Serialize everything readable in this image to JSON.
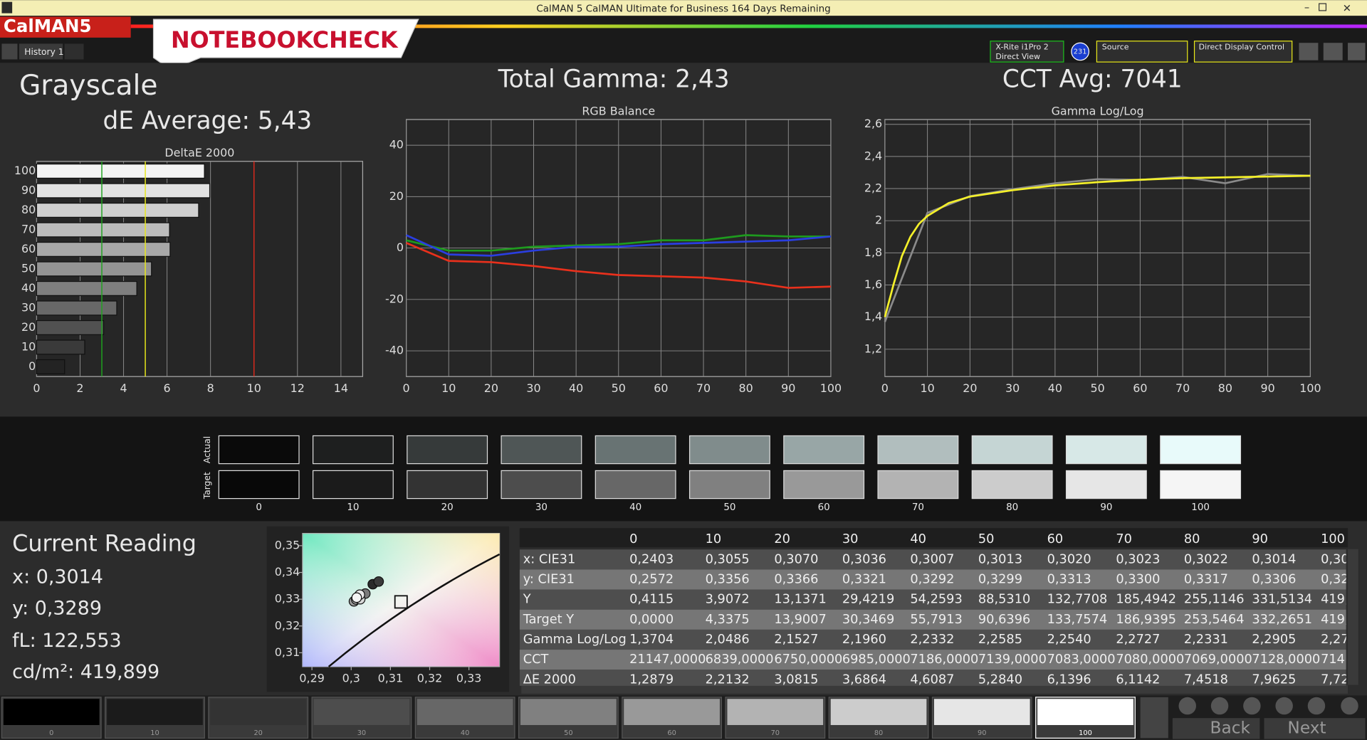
{
  "window": {
    "title": "CalMAN 5 CalMAN Ultimate for Business 164 Days Remaining",
    "app_logo": "CalMAN5",
    "tab": "History 1",
    "watermark": "NOTEBOOKCHECK",
    "meter_line1": "X-Rite i1Pro 2",
    "meter_line2": "Direct View",
    "badge": "231",
    "source": "Source",
    "display": "Direct Display Control"
  },
  "header": {
    "section": "Grayscale",
    "de_average": "dE Average: 5,43",
    "total_gamma": "Total Gamma: 2,43",
    "cct_avg": "CCT Avg: 7041"
  },
  "chart_data": [
    {
      "type": "hbar",
      "title": "DeltaE 2000",
      "categories": [
        100,
        90,
        80,
        70,
        60,
        50,
        40,
        30,
        20,
        10,
        0
      ],
      "values": [
        7.72,
        7.9625,
        7.4518,
        6.1142,
        6.1396,
        5.284,
        4.6087,
        3.6864,
        3.0815,
        2.2132,
        1.2879
      ],
      "colors": [
        "#f4f4f4",
        "#e2e2e2",
        "#cfcfcf",
        "#bcbcbc",
        "#a8a8a8",
        "#949494",
        "#7f7f7f",
        "#686868",
        "#515151",
        "#3a3a3a",
        "#232323"
      ],
      "xlim": [
        0,
        15
      ],
      "xticks": [
        0,
        2,
        4,
        6,
        8,
        10,
        12,
        14
      ],
      "grid": true,
      "reference_lines": [
        {
          "value": 3,
          "color": "#1fa31f"
        },
        {
          "value": 5,
          "color": "#e8e81a"
        },
        {
          "value": 10,
          "color": "#d8281c"
        }
      ]
    },
    {
      "type": "line",
      "title": "RGB Balance",
      "x": [
        0,
        10,
        20,
        30,
        40,
        50,
        60,
        70,
        80,
        90,
        100
      ],
      "series": [
        {
          "color": "#e8301c",
          "values": [
            2,
            -5,
            -5.5,
            -7,
            -9,
            -10.5,
            -11,
            -11.5,
            -13,
            -15.5,
            -15
          ]
        },
        {
          "color": "#1e9a1e",
          "values": [
            3,
            -1,
            -1,
            0.5,
            1,
            1.5,
            3,
            3,
            5,
            4.5,
            4.5
          ]
        },
        {
          "color": "#2a3ee0",
          "values": [
            5,
            -2.5,
            -3,
            -1,
            0.5,
            0.5,
            1.5,
            2,
            2.5,
            3,
            4.5
          ]
        }
      ],
      "xlim": [
        0,
        100
      ],
      "xticks": [
        0,
        10,
        20,
        30,
        40,
        50,
        60,
        70,
        80,
        90,
        100
      ],
      "ylim": [
        -50,
        50
      ],
      "yticks": [
        -40,
        -20,
        0,
        20,
        40
      ],
      "grid": true
    },
    {
      "type": "line",
      "title": "Gamma Log/Log",
      "series": [
        {
          "color": "#8a8a8a",
          "x": [
            0,
            10,
            20,
            30,
            40,
            50,
            60,
            70,
            80,
            90,
            100
          ],
          "values": [
            1.3704,
            2.0486,
            2.1527,
            2.196,
            2.2332,
            2.2585,
            2.254,
            2.2727,
            2.2331,
            2.2905,
            2.28
          ]
        },
        {
          "color": "#f4f02a",
          "x": [
            0,
            2,
            4,
            6,
            8,
            10,
            15,
            20,
            30,
            40,
            50,
            60,
            70,
            80,
            90,
            100
          ],
          "values": [
            1.4,
            1.6,
            1.78,
            1.9,
            1.98,
            2.03,
            2.11,
            2.15,
            2.19,
            2.22,
            2.24,
            2.255,
            2.265,
            2.27,
            2.275,
            2.28
          ]
        }
      ],
      "xlim": [
        0,
        100
      ],
      "xticks": [
        0,
        10,
        20,
        30,
        40,
        50,
        60,
        70,
        80,
        90,
        100
      ],
      "ylim": [
        1.03,
        2.63
      ],
      "yticks": [
        {
          "value": 1.2,
          "label": "1,2"
        },
        {
          "value": 1.4,
          "label": "1,4"
        },
        {
          "value": 1.6,
          "label": "1,6"
        },
        {
          "value": 1.8,
          "label": "1,8"
        },
        2,
        {
          "value": 2.2,
          "label": "2,2"
        },
        {
          "value": 2.4,
          "label": "2,4"
        },
        {
          "value": 2.6,
          "label": "2,6"
        }
      ],
      "grid": true
    },
    {
      "type": "scatter",
      "x": [
        0.3055,
        0.307,
        0.3036,
        0.3007,
        0.3013,
        0.302,
        0.3023,
        0.3022,
        0.3014
      ],
      "values": [
        0.3356,
        0.3366,
        0.3321,
        0.3292,
        0.3299,
        0.3313,
        0.33,
        0.3317,
        0.3306
      ],
      "colors": [
        "#2a2a2a",
        "#3a3a3a",
        "#7a7a7a",
        "#9a9a9a",
        "#b0b0b0",
        "#c8c8c8",
        "#d8d8d8",
        "#e8e8e8",
        "#f4f4f4"
      ],
      "target": {
        "x": 0.3127,
        "y": 0.329
      },
      "xlim": [
        0.2876,
        0.3378
      ],
      "xticks": [
        {
          "value": 0.29,
          "label": "0,29"
        },
        {
          "value": 0.3,
          "label": "0,3"
        },
        {
          "value": 0.31,
          "label": "0,31"
        },
        {
          "value": 0.32,
          "label": "0,32"
        },
        {
          "value": 0.33,
          "label": "0,33"
        }
      ],
      "ylim": [
        0.3048,
        0.3546
      ],
      "yticks": [
        {
          "value": 0.31,
          "label": "0,31"
        },
        {
          "value": 0.32,
          "label": "0,32"
        },
        {
          "value": 0.33,
          "label": "0,33"
        },
        {
          "value": 0.34,
          "label": "0,34"
        },
        {
          "value": 0.35,
          "label": "0,35"
        }
      ],
      "grid": false
    }
  ],
  "swatches": {
    "actual_label": "Actual",
    "target_label": "Target",
    "labels": [
      0,
      10,
      20,
      30,
      40,
      50,
      60,
      70,
      80,
      90,
      100
    ],
    "actual": [
      "#0a0a0a",
      "#1e1f1f",
      "#363a3a",
      "#4f5656",
      "#687373",
      "#808c8c",
      "#98a6a6",
      "#b1bebe",
      "#c5d5d4",
      "#d7e8e7",
      "#e8fafa"
    ],
    "target": [
      "#080808",
      "#1b1b1b",
      "#333333",
      "#4d4d4d",
      "#676767",
      "#808080",
      "#999999",
      "#b3b3b3",
      "#cccccc",
      "#e6e6e6",
      "#f5f5f5"
    ]
  },
  "reading": {
    "title": "Current Reading",
    "x": "x: 0,3014",
    "y": "y: 0,3289",
    "fl": "fL: 122,553",
    "cdm2": "cd/m²: 419,899"
  },
  "table": {
    "header": [
      0,
      10,
      20,
      30,
      40,
      50,
      60,
      70,
      80,
      90,
      100
    ],
    "rows": [
      [
        "x: CIE31",
        "0,2403",
        "0,3055",
        "0,3070",
        "0,3036",
        "0,3007",
        "0,3013",
        "0,3020",
        "0,3023",
        "0,3022",
        "0,3014",
        "0,30"
      ],
      [
        "y: CIE31",
        "0,2572",
        "0,3356",
        "0,3366",
        "0,3321",
        "0,3292",
        "0,3299",
        "0,3313",
        "0,3300",
        "0,3317",
        "0,3306",
        "0,32"
      ],
      [
        "Y",
        "0,4115",
        "3,9072",
        "13,1371",
        "29,4219",
        "54,2593",
        "88,5310",
        "132,7708",
        "185,4942",
        "255,1146",
        "331,5134",
        "419,"
      ],
      [
        "Target Y",
        "0,0000",
        "4,3375",
        "13,9007",
        "30,3469",
        "55,7913",
        "90,6396",
        "133,7574",
        "186,9395",
        "253,5464",
        "332,2651",
        "419,"
      ],
      [
        "Gamma Log/Log",
        "1,3704",
        "2,0486",
        "2,1527",
        "2,1960",
        "2,2332",
        "2,2585",
        "2,2540",
        "2,2727",
        "2,2331",
        "2,2905",
        "2,27"
      ],
      [
        "CCT",
        "21147,0000",
        "6839,0000",
        "6750,0000",
        "6985,0000",
        "7186,0000",
        "7139,0000",
        "7083,0000",
        "7080,0000",
        "7069,0000",
        "7128,0000",
        "714"
      ],
      [
        "ΔE 2000",
        "1,2879",
        "2,2132",
        "3,0815",
        "3,6864",
        "4,6087",
        "5,2840",
        "6,1396",
        "6,1142",
        "7,4518",
        "7,9625",
        "7,72"
      ]
    ]
  },
  "bottom": {
    "labels": [
      0,
      10,
      20,
      30,
      40,
      50,
      60,
      70,
      80,
      90,
      100
    ],
    "colors": [
      "#000000",
      "#1b1b1b",
      "#333333",
      "#4d4d4d",
      "#676767",
      "#808080",
      "#999999",
      "#b3b3b3",
      "#cccccc",
      "#e6e6e6",
      "#ffffff"
    ],
    "back": "Back",
    "next": "Next"
  }
}
